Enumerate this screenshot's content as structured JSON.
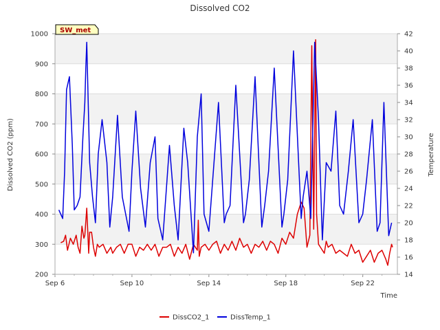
{
  "chart_data": {
    "type": "line",
    "title": "Dissolved CO2",
    "badge": "SW_met",
    "xlabel": "Time",
    "ylabel": "Dissolved CO2 (ppm)",
    "y2label": "Temperature",
    "x_ticks": [
      {
        "day": 6,
        "label": "Sep 6"
      },
      {
        "day": 10,
        "label": "Sep 10"
      },
      {
        "day": 14,
        "label": "Sep 14"
      },
      {
        "day": 18,
        "label": "Sep 18"
      },
      {
        "day": 22,
        "label": "Sep 22"
      }
    ],
    "xlim": [
      6,
      23.8
    ],
    "ylim": [
      200,
      1000
    ],
    "y2lim": [
      14,
      42
    ],
    "y_ticks": [
      200,
      300,
      400,
      500,
      600,
      700,
      800,
      900,
      1000
    ],
    "y2_ticks": [
      14,
      16,
      18,
      20,
      22,
      24,
      26,
      28,
      30,
      32,
      34,
      36,
      38,
      40,
      42
    ],
    "grid": true,
    "legend_position": "bottom",
    "series": [
      {
        "name": "DissCO2_1",
        "axis": "left",
        "color": "#dd0000",
        "x": [
          6.3,
          6.45,
          6.55,
          6.65,
          6.8,
          6.95,
          7.1,
          7.2,
          7.3,
          7.4,
          7.5,
          7.55,
          7.65,
          7.75,
          7.8,
          7.9,
          8.0,
          8.1,
          8.2,
          8.3,
          8.5,
          8.7,
          8.9,
          9.0,
          9.2,
          9.4,
          9.6,
          9.8,
          10.0,
          10.2,
          10.4,
          10.6,
          10.8,
          11.0,
          11.2,
          11.4,
          11.6,
          11.8,
          12.0,
          12.2,
          12.4,
          12.6,
          12.8,
          13.0,
          13.2,
          13.4,
          13.45,
          13.5,
          13.6,
          13.8,
          14.0,
          14.2,
          14.4,
          14.6,
          14.8,
          15.0,
          15.2,
          15.4,
          15.6,
          15.8,
          16.0,
          16.2,
          16.4,
          16.6,
          16.8,
          17.0,
          17.2,
          17.4,
          17.6,
          17.8,
          18.0,
          18.2,
          18.4,
          18.6,
          18.8,
          18.95,
          19.1,
          19.25,
          19.35,
          19.45,
          19.55,
          19.6,
          19.7,
          19.8,
          19.9,
          20.0,
          20.1,
          20.2,
          20.4,
          20.6,
          20.8,
          21.0,
          21.2,
          21.4,
          21.6,
          21.8,
          22.0,
          22.2,
          22.4,
          22.6,
          22.8,
          23.0,
          23.2,
          23.3,
          23.4,
          23.5,
          23.55
        ],
        "y": [
          305,
          310,
          330,
          280,
          320,
          300,
          330,
          290,
          270,
          360,
          320,
          330,
          420,
          270,
          340,
          340,
          290,
          260,
          300,
          290,
          300,
          270,
          290,
          270,
          290,
          300,
          270,
          300,
          300,
          260,
          290,
          280,
          300,
          280,
          300,
          260,
          290,
          290,
          300,
          260,
          290,
          270,
          300,
          250,
          300,
          280,
          380,
          260,
          290,
          300,
          280,
          300,
          310,
          270,
          300,
          280,
          310,
          280,
          320,
          290,
          300,
          270,
          300,
          290,
          310,
          280,
          310,
          300,
          270,
          320,
          300,
          340,
          320,
          400,
          440,
          420,
          290,
          330,
          960,
          350,
          980,
          400,
          300,
          290,
          280,
          270,
          310,
          290,
          300,
          270,
          280,
          270,
          260,
          300,
          270,
          280,
          240,
          260,
          280,
          240,
          270,
          280,
          250,
          230,
          270,
          300,
          290
        ]
      },
      {
        "name": "DissTemp_1",
        "axis": "right",
        "color": "#0000dd",
        "x": [
          6.2,
          6.4,
          6.5,
          6.6,
          6.75,
          6.9,
          7.0,
          7.15,
          7.3,
          7.45,
          7.55,
          7.6,
          7.65,
          7.8,
          7.95,
          8.1,
          8.25,
          8.45,
          8.7,
          8.85,
          9.0,
          9.25,
          9.5,
          9.85,
          10.0,
          10.2,
          10.45,
          10.7,
          10.95,
          11.2,
          11.35,
          11.6,
          11.95,
          12.2,
          12.4,
          12.7,
          12.9,
          13.2,
          13.4,
          13.6,
          13.75,
          14.0,
          14.2,
          14.5,
          14.8,
          14.9,
          15.1,
          15.4,
          15.8,
          15.9,
          16.1,
          16.4,
          16.75,
          16.9,
          17.1,
          17.4,
          17.8,
          17.9,
          18.1,
          18.4,
          18.8,
          18.9,
          19.1,
          19.3,
          19.5,
          19.7,
          19.9,
          20.1,
          20.35,
          20.6,
          20.8,
          21.0,
          21.25,
          21.5,
          21.8,
          22.0,
          22.2,
          22.5,
          22.75,
          22.9,
          23.1,
          23.35,
          23.5
        ],
        "y": [
          21.5,
          20.5,
          26,
          35.5,
          37,
          29,
          21.5,
          22,
          23,
          30,
          34,
          38,
          41,
          27,
          23,
          20,
          28,
          32,
          27,
          19.5,
          23,
          32.5,
          23,
          19,
          26,
          33,
          24,
          19.5,
          27,
          30,
          20.5,
          18,
          29,
          22,
          18,
          31,
          27,
          16.5,
          30,
          35,
          21,
          19,
          25,
          34,
          20,
          21,
          22,
          36,
          20,
          21,
          25,
          37,
          19.5,
          22,
          26,
          38,
          19.5,
          21,
          25,
          40,
          20.5,
          23,
          26,
          20.5,
          41,
          32,
          18,
          27,
          26,
          33,
          22,
          21,
          26,
          32,
          20,
          21,
          25,
          32,
          19,
          20,
          34,
          18.5,
          20
        ]
      }
    ]
  }
}
